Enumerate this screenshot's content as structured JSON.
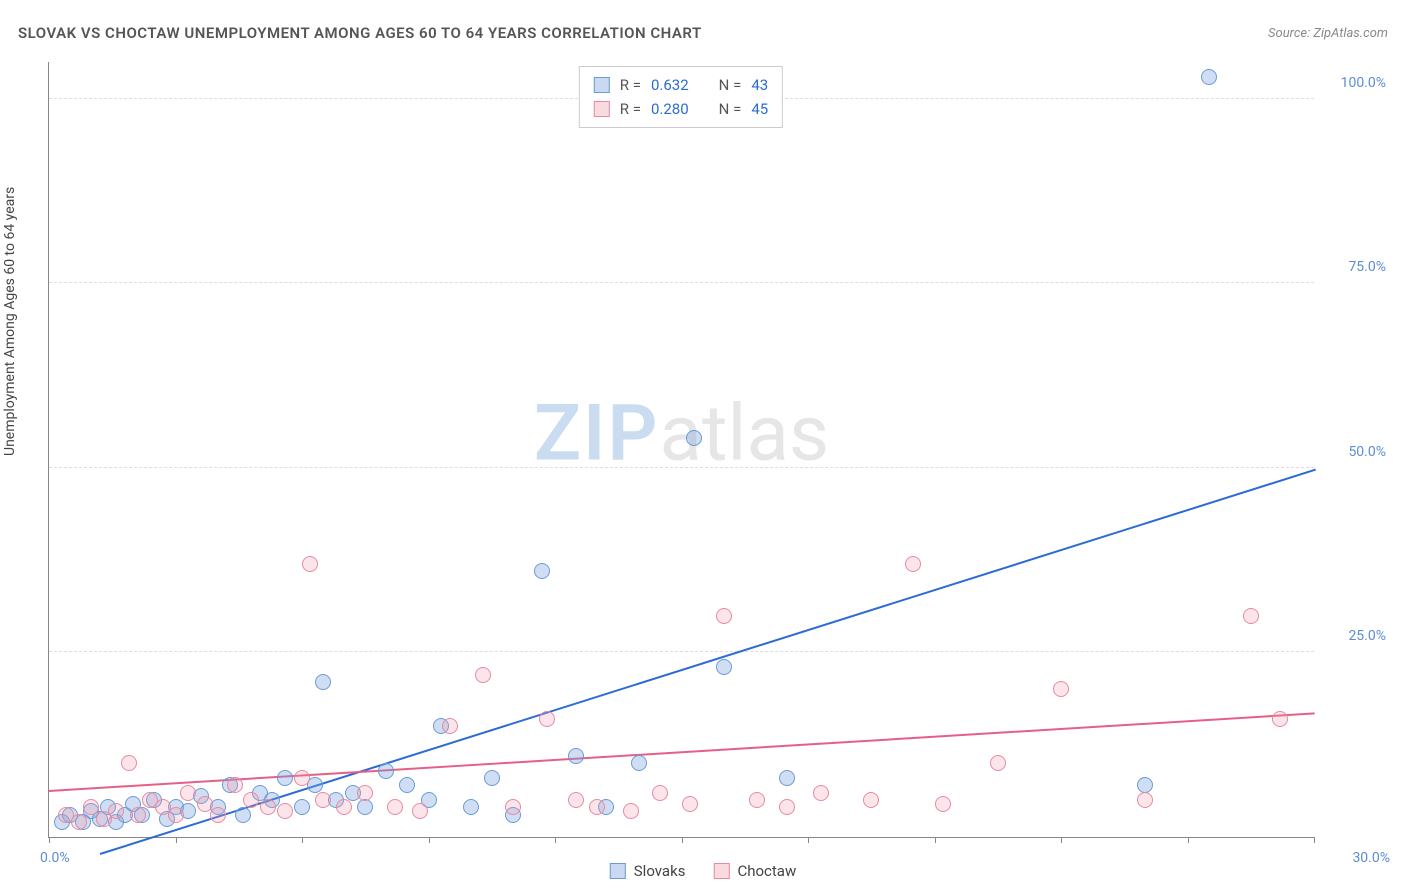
{
  "header": {
    "title": "SLOVAK VS CHOCTAW UNEMPLOYMENT AMONG AGES 60 TO 64 YEARS CORRELATION CHART",
    "source": "Source: ZipAtlas.com"
  },
  "ylabel": "Unemployment Among Ages 60 to 64 years",
  "watermark": {
    "zip": "ZIP",
    "atlas": "atlas"
  },
  "chart": {
    "type": "scatter",
    "xlim": [
      0,
      30
    ],
    "ylim": [
      0,
      105
    ],
    "xtick_step": 3,
    "yticks": [
      25,
      50,
      75,
      100
    ],
    "ytick_labels": [
      "25.0%",
      "50.0%",
      "75.0%",
      "100.0%"
    ],
    "x_min_label": "0.0%",
    "x_max_label": "30.0%",
    "background_color": "#ffffff",
    "grid_color": "#dddddd",
    "marker_radius": 8,
    "series": [
      {
        "name": "Slovaks",
        "color_fill": "rgba(120,160,220,0.35)",
        "color_stroke": "#6a9bd8",
        "trend_color": "#2b6cd4",
        "trend": {
          "x1": 1.2,
          "y1": -2,
          "x2": 30,
          "y2": 50
        },
        "R": "0.632",
        "N": "43",
        "points": [
          [
            0.3,
            2
          ],
          [
            0.5,
            3
          ],
          [
            0.8,
            2
          ],
          [
            1.0,
            3.5
          ],
          [
            1.2,
            2.5
          ],
          [
            1.4,
            4
          ],
          [
            1.6,
            2
          ],
          [
            1.8,
            3
          ],
          [
            2.0,
            4.5
          ],
          [
            2.2,
            3
          ],
          [
            2.5,
            5
          ],
          [
            2.8,
            2.5
          ],
          [
            3.0,
            4
          ],
          [
            3.3,
            3.5
          ],
          [
            3.6,
            5.5
          ],
          [
            4.0,
            4
          ],
          [
            4.3,
            7
          ],
          [
            4.6,
            3
          ],
          [
            5.0,
            6
          ],
          [
            5.3,
            5
          ],
          [
            5.6,
            8
          ],
          [
            6.0,
            4
          ],
          [
            6.3,
            7
          ],
          [
            6.5,
            21
          ],
          [
            6.8,
            5
          ],
          [
            7.2,
            6
          ],
          [
            7.5,
            4
          ],
          [
            8.0,
            9
          ],
          [
            8.5,
            7
          ],
          [
            9.0,
            5
          ],
          [
            9.3,
            15
          ],
          [
            10.0,
            4
          ],
          [
            10.5,
            8
          ],
          [
            11.0,
            3
          ],
          [
            11.7,
            36
          ],
          [
            12.5,
            11
          ],
          [
            13.2,
            4
          ],
          [
            14.0,
            10
          ],
          [
            15.3,
            54
          ],
          [
            16.0,
            23
          ],
          [
            17.5,
            8
          ],
          [
            26.0,
            7
          ],
          [
            27.5,
            103
          ]
        ]
      },
      {
        "name": "Choctaw",
        "color_fill": "rgba(240,150,170,0.25)",
        "color_stroke": "#e88aa0",
        "trend_color": "#e55f87",
        "trend": {
          "x1": 0,
          "y1": 6.5,
          "x2": 30,
          "y2": 17
        },
        "R": "0.280",
        "N": "45",
        "points": [
          [
            0.4,
            3
          ],
          [
            0.7,
            2
          ],
          [
            1.0,
            4
          ],
          [
            1.3,
            2.5
          ],
          [
            1.6,
            3.5
          ],
          [
            1.9,
            10
          ],
          [
            2.1,
            3
          ],
          [
            2.4,
            5
          ],
          [
            2.7,
            4
          ],
          [
            3.0,
            3
          ],
          [
            3.3,
            6
          ],
          [
            3.7,
            4.5
          ],
          [
            4.0,
            3
          ],
          [
            4.4,
            7
          ],
          [
            4.8,
            5
          ],
          [
            5.2,
            4
          ],
          [
            5.6,
            3.5
          ],
          [
            6.0,
            8
          ],
          [
            6.2,
            37
          ],
          [
            6.5,
            5
          ],
          [
            7.0,
            4
          ],
          [
            7.5,
            6
          ],
          [
            8.2,
            4
          ],
          [
            8.8,
            3.5
          ],
          [
            9.5,
            15
          ],
          [
            10.3,
            22
          ],
          [
            11.0,
            4
          ],
          [
            11.8,
            16
          ],
          [
            12.5,
            5
          ],
          [
            13.0,
            4
          ],
          [
            13.8,
            3.5
          ],
          [
            14.5,
            6
          ],
          [
            15.2,
            4.5
          ],
          [
            16.0,
            30
          ],
          [
            16.8,
            5
          ],
          [
            17.5,
            4
          ],
          [
            18.3,
            6
          ],
          [
            19.5,
            5
          ],
          [
            20.5,
            37
          ],
          [
            21.2,
            4.5
          ],
          [
            22.5,
            10
          ],
          [
            24.0,
            20
          ],
          [
            26.0,
            5
          ],
          [
            28.5,
            30
          ],
          [
            29.2,
            16
          ]
        ]
      }
    ]
  },
  "stats_box": {
    "rows": [
      {
        "series": 0,
        "R_label": "R =",
        "N_label": "N ="
      },
      {
        "series": 1,
        "R_label": "R =",
        "N_label": "N ="
      }
    ]
  },
  "legend": {
    "items": [
      {
        "series": 0
      },
      {
        "series": 1
      }
    ]
  }
}
